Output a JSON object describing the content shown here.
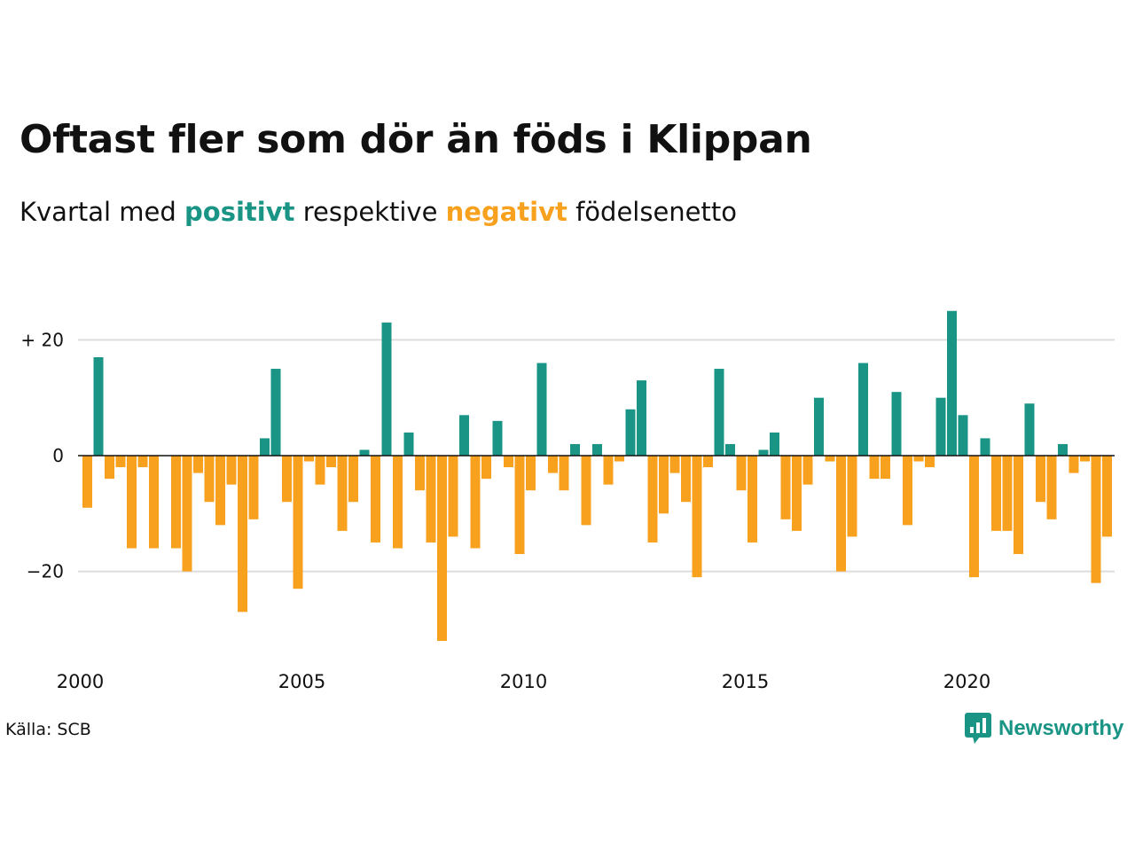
{
  "title": "Oftast fler som dör än föds i Klippan",
  "subtitle": {
    "prefix": "Kvartal med",
    "positive_word": "positivt",
    "middle": "respektive",
    "negative_word": "negativt",
    "suffix": "födelsenetto"
  },
  "source": "Källa: SCB",
  "brand": {
    "name": "Newsworthy",
    "icon": "newsworthy-logo-icon"
  },
  "colors": {
    "positive": "#1a9485",
    "negative": "#f8a11f",
    "grid": "#dddddd",
    "text": "#111111"
  },
  "chart_data": {
    "type": "bar",
    "title": "Oftast fler som dör än föds i Klippan",
    "subtitle": "Kvartal med positivt respektive negativt födelsenetto",
    "xlabel": "",
    "ylabel": "",
    "start_year": 2000,
    "periods_per_year": 4,
    "x_ticks": [
      {
        "value": 2000,
        "label": "2000"
      },
      {
        "value": 2005,
        "label": "2005"
      },
      {
        "value": 2010,
        "label": "2010"
      },
      {
        "value": 2015,
        "label": "2015"
      },
      {
        "value": 2020,
        "label": "2020"
      }
    ],
    "y_ticks": [
      {
        "value": 20,
        "label": "+ 20"
      },
      {
        "value": 0,
        "label": "0"
      },
      {
        "value": -20,
        "label": "−20"
      }
    ],
    "ylim": [
      -32,
      25
    ],
    "grid": true,
    "values": [
      -9,
      17,
      -4,
      -2,
      -16,
      -2,
      -16,
      0,
      -16,
      -20,
      -3,
      -8,
      -12,
      -5,
      -27,
      -11,
      3,
      15,
      -8,
      -23,
      -1,
      -5,
      -2,
      -13,
      -8,
      1,
      -15,
      23,
      -16,
      4,
      -6,
      -15,
      -32,
      -14,
      7,
      -16,
      -4,
      6,
      -2,
      -17,
      -6,
      16,
      -3,
      -6,
      2,
      -12,
      2,
      -5,
      -1,
      8,
      13,
      -15,
      -10,
      -3,
      -8,
      -21,
      -2,
      15,
      2,
      -6,
      -15,
      1,
      4,
      -11,
      -13,
      -5,
      10,
      -1,
      -20,
      -14,
      16,
      -4,
      -4,
      11,
      -12,
      -1,
      -2,
      10,
      25,
      7,
      -21,
      3,
      -13,
      -13,
      -17,
      9,
      -8,
      -11,
      2,
      -3,
      -1,
      -22,
      -14
    ]
  }
}
